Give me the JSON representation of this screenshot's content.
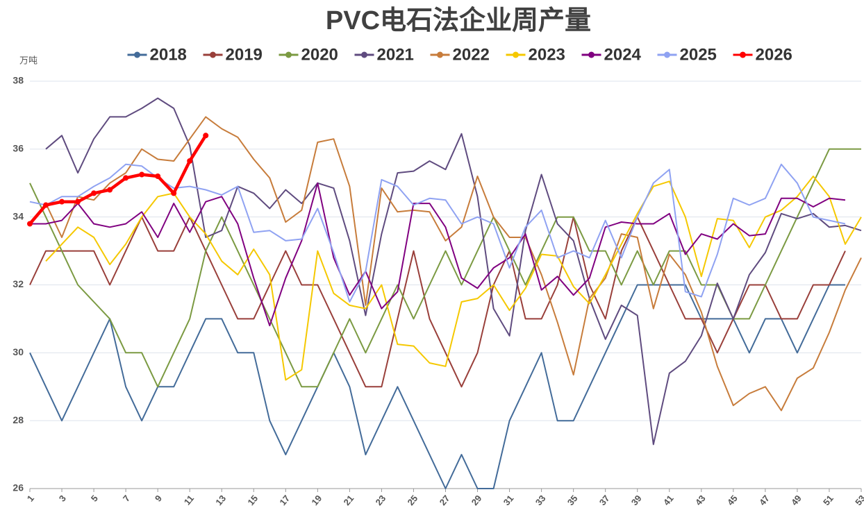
{
  "chart_data": {
    "type": "line",
    "title": "PVC电石法企业周产量",
    "y_label": "万吨",
    "x": [
      1,
      2,
      3,
      4,
      5,
      6,
      7,
      8,
      9,
      10,
      11,
      12,
      13,
      14,
      15,
      16,
      17,
      18,
      19,
      20,
      21,
      22,
      23,
      24,
      25,
      26,
      27,
      28,
      29,
      30,
      31,
      32,
      33,
      34,
      35,
      36,
      37,
      38,
      39,
      40,
      41,
      42,
      43,
      44,
      45,
      46,
      47,
      48,
      49,
      50,
      51,
      52,
      53
    ],
    "xlim": [
      1,
      53
    ],
    "xticks": [
      1,
      3,
      5,
      7,
      9,
      11,
      13,
      15,
      17,
      19,
      21,
      23,
      25,
      27,
      29,
      31,
      33,
      35,
      37,
      39,
      41,
      43,
      45,
      47,
      49,
      51,
      53
    ],
    "ylim": [
      26,
      38
    ],
    "yticks": [
      26,
      28,
      30,
      32,
      34,
      36,
      38
    ],
    "grid": true,
    "legend": "top",
    "series": [
      {
        "name": "2018",
        "color": "#436b99",
        "values": [
          30,
          29,
          28,
          29,
          30,
          31,
          29,
          28,
          29,
          29,
          30,
          31,
          31,
          30,
          30,
          28,
          27,
          28,
          29,
          30,
          29,
          27,
          28,
          29,
          28,
          27,
          26,
          27,
          26,
          26,
          28,
          29,
          30,
          28,
          28,
          29,
          30,
          31,
          32,
          32,
          32,
          32,
          31,
          31,
          31,
          30,
          31,
          31,
          30,
          31,
          32,
          32,
          null
        ]
      },
      {
        "name": "2019",
        "color": "#993f3a",
        "values": [
          32,
          33,
          33,
          33,
          33,
          32,
          33,
          34,
          33,
          33,
          34,
          33,
          32,
          31,
          31,
          32,
          33,
          32,
          32,
          31,
          30,
          29,
          29,
          31,
          33,
          31,
          30,
          29,
          30,
          32,
          33,
          31,
          31,
          32,
          34,
          32,
          31,
          33,
          34,
          33,
          32,
          31,
          31,
          30,
          31,
          32,
          32,
          31,
          31,
          32,
          32,
          33,
          null
        ]
      },
      {
        "name": "2020",
        "color": "#7b9a42",
        "values": [
          35,
          34,
          33,
          32,
          31.5,
          31,
          30,
          30,
          29,
          30,
          31,
          33,
          34,
          33,
          32,
          31,
          30,
          29,
          29,
          30,
          31,
          30,
          31,
          32,
          31,
          32,
          33,
          32,
          33,
          34,
          33,
          32,
          33,
          34,
          34,
          33,
          33,
          32,
          33,
          32,
          33,
          33,
          32,
          32,
          31,
          31,
          32,
          33,
          34,
          35,
          36,
          36,
          36
        ]
      },
      {
        "name": "2021",
        "color": "#5f4b7f",
        "values": [
          null,
          36,
          36.4,
          35.3,
          36.3,
          36.95,
          36.95,
          37.2,
          37.5,
          37.2,
          36.1,
          33.4,
          33.6,
          34.9,
          34.7,
          34.25,
          34.8,
          34.4,
          35,
          34.85,
          33.3,
          31.1,
          33.5,
          35.3,
          35.35,
          35.65,
          35.4,
          36.45,
          34.6,
          31.3,
          30.5,
          33.6,
          35.25,
          33.8,
          33.3,
          31.6,
          30.4,
          31.4,
          31.1,
          27.3,
          29.4,
          29.75,
          30.5,
          32.05,
          31,
          32.3,
          32.95,
          34.1,
          33.95,
          34.1,
          33.7,
          33.75,
          33.6
        ]
      },
      {
        "name": "2022",
        "color": "#c77c3b",
        "values": [
          33.8,
          34.4,
          33.4,
          34.6,
          34.5,
          35,
          35.3,
          36,
          35.7,
          35.65,
          36.3,
          36.95,
          36.6,
          36.35,
          35.7,
          35.15,
          33.85,
          34.2,
          36.2,
          36.3,
          34.9,
          31.4,
          34.85,
          34.15,
          34.2,
          34.15,
          33.3,
          33.7,
          35.2,
          34,
          33.4,
          33.4,
          32.3,
          30.9,
          29.35,
          31.6,
          32.2,
          33.5,
          33.4,
          31.3,
          32.9,
          32.3,
          31.2,
          29.6,
          28.45,
          28.8,
          29,
          28.3,
          29.25,
          29.55,
          30.6,
          31.85,
          32.8
        ]
      },
      {
        "name": "2023",
        "color": "#f5c800",
        "values": [
          null,
          32.7,
          33.2,
          33.7,
          33.4,
          32.6,
          33.2,
          34,
          34.6,
          34.7,
          34,
          33.5,
          32.7,
          32.3,
          33.05,
          32.3,
          29.2,
          29.5,
          33,
          31.75,
          31.4,
          31.3,
          32,
          30.25,
          30.2,
          29.7,
          29.6,
          31.5,
          31.6,
          32,
          31.25,
          31.9,
          32.9,
          32.85,
          31.95,
          31.45,
          32.3,
          33.2,
          34.1,
          34.9,
          35.05,
          34,
          32.25,
          33.95,
          33.9,
          33.1,
          34,
          34.2,
          34.6,
          35.2,
          34.6,
          33.2,
          34
        ]
      },
      {
        "name": "2024",
        "color": "#800080",
        "values": [
          33.8,
          33.8,
          33.9,
          34.4,
          33.8,
          33.7,
          33.8,
          34.15,
          33.4,
          34.4,
          33.55,
          34.45,
          34.6,
          33.8,
          32.2,
          30.8,
          32.2,
          33.3,
          35,
          32.8,
          31.7,
          32.4,
          31.3,
          31.8,
          34.4,
          34.4,
          33.7,
          32.2,
          31.9,
          32.5,
          32.8,
          33.5,
          31.85,
          32.25,
          31.7,
          32.2,
          33.7,
          33.85,
          33.8,
          33.8,
          34.1,
          32.9,
          33.5,
          33.35,
          33.8,
          33.45,
          33.5,
          34.55,
          34.55,
          34.3,
          34.55,
          34.5,
          null
        ]
      },
      {
        "name": "2025",
        "color": "#8fa2f2",
        "values": [
          34.45,
          34.35,
          34.6,
          34.6,
          34.9,
          35.15,
          35.55,
          35.5,
          35.15,
          34.85,
          34.9,
          34.8,
          34.65,
          34.9,
          33.55,
          33.6,
          33.3,
          33.35,
          34.25,
          32.95,
          31.5,
          32.4,
          35.1,
          34.9,
          34.35,
          34.55,
          34.5,
          33.8,
          34,
          33.8,
          32.5,
          33.7,
          34.2,
          32.8,
          33,
          32.8,
          33.9,
          32.8,
          34,
          35,
          35.4,
          31.8,
          31.65,
          32.9,
          34.55,
          34.35,
          34.55,
          35.55,
          35,
          34,
          33.9,
          33.8,
          null
        ]
      },
      {
        "name": "2026",
        "color": "#ff0000",
        "markers": true,
        "values": [
          33.8,
          34.35,
          34.45,
          34.45,
          34.7,
          34.8,
          35.15,
          35.25,
          35.2,
          34.7,
          35.65,
          36.4,
          null,
          null,
          null,
          null,
          null,
          null,
          null,
          null,
          null,
          null,
          null,
          null,
          null,
          null,
          null,
          null,
          null,
          null,
          null,
          null,
          null,
          null,
          null,
          null,
          null,
          null,
          null,
          null,
          null,
          null,
          null,
          null,
          null,
          null,
          null,
          null,
          null,
          null,
          null,
          null,
          null
        ]
      }
    ]
  }
}
